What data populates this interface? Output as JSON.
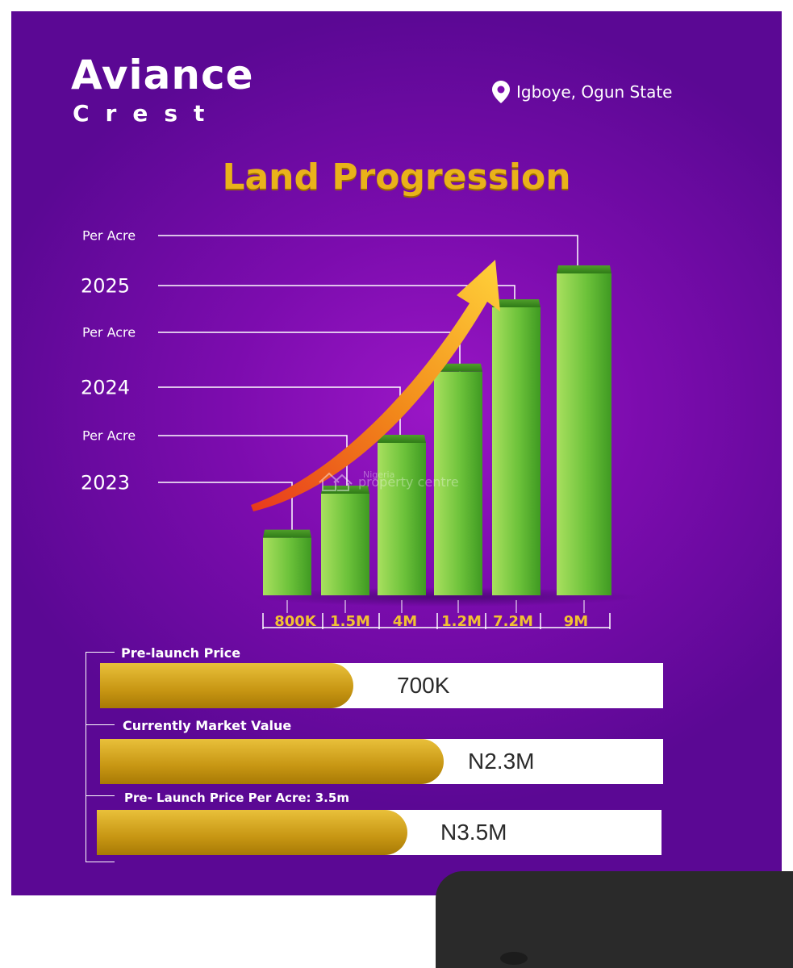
{
  "brand": {
    "name": "Aviance",
    "sub": "Crest"
  },
  "location": {
    "icon": "location-pin-icon",
    "text": "Igboye, Ogun State"
  },
  "colors": {
    "background": "#7c0cae",
    "gold": "#e9b21a",
    "bar_green": "#5fb832",
    "bar_gold": "#c79613"
  },
  "chart_data": {
    "type": "bar",
    "title": "Land Progression",
    "categories": [
      "800K",
      "1.5M",
      "4M",
      "1.2M",
      "7.2M",
      "9M"
    ],
    "series": [
      {
        "values": [
          800000,
          1500000,
          4000000,
          1200000,
          7200000,
          9000000
        ]
      }
    ],
    "bar_heights_relative": [
      0.17,
      0.3,
      0.45,
      0.66,
      0.85,
      0.95
    ],
    "side_labels": [
      "Per Acre",
      "2025",
      "Per Acre",
      "2024",
      "Per Acre",
      "2023"
    ],
    "grid": false,
    "legend": "none"
  },
  "watermark": {
    "small": "Nigeria",
    "text": "property centre"
  },
  "prices": [
    {
      "label": "Pre-launch Price",
      "value": "700K",
      "fill": 0.45
    },
    {
      "label": "Currently Market Value",
      "value": "N2.3M",
      "fill": 0.61
    },
    {
      "label": "Pre- Launch Price Per Acre: 3.5m",
      "value": "N3.5M",
      "fill": 0.55
    }
  ]
}
